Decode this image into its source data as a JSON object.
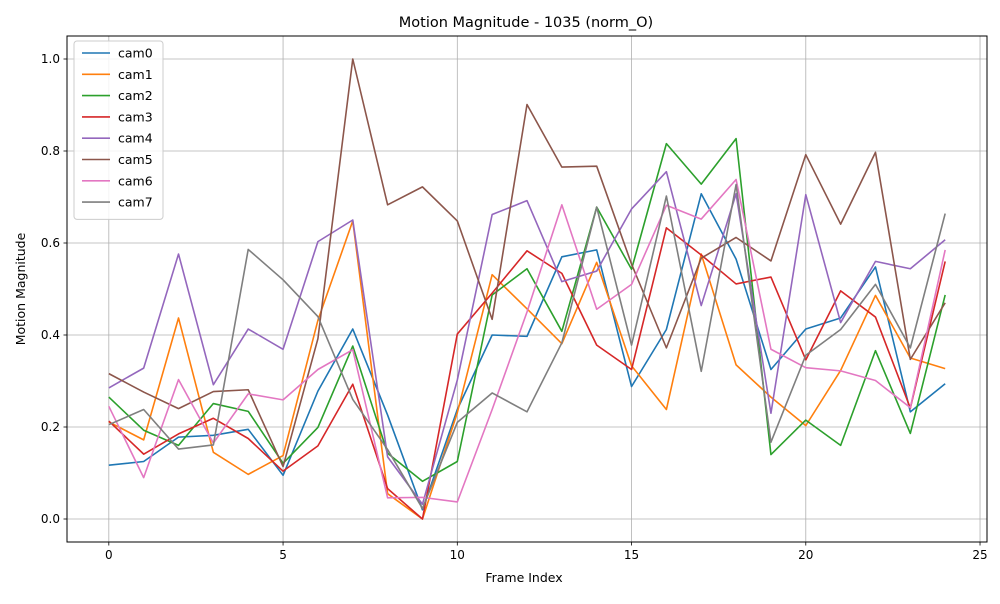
{
  "chart_data": {
    "type": "line",
    "title": "Motion Magnitude - 1035 (norm_O)",
    "xlabel": "Frame Index",
    "ylabel": "Motion Magnitude",
    "xlim": [
      -1.2,
      25.2
    ],
    "ylim": [
      -0.05,
      1.05
    ],
    "xticks": [
      0,
      5,
      10,
      15,
      20,
      25
    ],
    "yticks": [
      0.0,
      0.2,
      0.4,
      0.6,
      0.8,
      1.0
    ],
    "xtick_labels": [
      "0",
      "5",
      "10",
      "15",
      "20",
      "25"
    ],
    "ytick_labels": [
      "0.0",
      "0.2",
      "0.4",
      "0.6",
      "0.8",
      "1.0"
    ],
    "grid": true,
    "legend_position": "top-left",
    "x": [
      0,
      1,
      2,
      3,
      4,
      5,
      6,
      7,
      8,
      9,
      10,
      11,
      12,
      13,
      14,
      15,
      16,
      17,
      18,
      19,
      20,
      21,
      22,
      23,
      24
    ],
    "series": [
      {
        "name": "cam0",
        "color": "#1f77b4",
        "values": [
          0.117,
          0.125,
          0.178,
          0.182,
          0.195,
          0.095,
          0.278,
          0.413,
          0.226,
          0.02,
          0.238,
          0.4,
          0.397,
          0.57,
          0.585,
          0.288,
          0.412,
          0.707,
          0.565,
          0.325,
          0.413,
          0.437,
          0.548,
          0.233,
          0.294
        ]
      },
      {
        "name": "cam1",
        "color": "#ff7f0e",
        "values": [
          0.211,
          0.172,
          0.437,
          0.145,
          0.097,
          0.138,
          0.432,
          0.648,
          0.055,
          0.0,
          0.231,
          0.531,
          0.457,
          0.381,
          0.558,
          0.333,
          0.238,
          0.576,
          0.335,
          0.265,
          0.203,
          0.323,
          0.486,
          0.35,
          0.327
        ]
      },
      {
        "name": "cam2",
        "color": "#2ca02c",
        "values": [
          0.265,
          0.193,
          0.16,
          0.251,
          0.234,
          0.121,
          0.199,
          0.376,
          0.143,
          0.082,
          0.125,
          0.487,
          0.544,
          0.408,
          0.678,
          0.543,
          0.816,
          0.728,
          0.827,
          0.14,
          0.215,
          0.16,
          0.366,
          0.186,
          0.487
        ]
      },
      {
        "name": "cam3",
        "color": "#d62728",
        "values": [
          0.213,
          0.141,
          0.185,
          0.219,
          0.175,
          0.104,
          0.159,
          0.293,
          0.066,
          0.0,
          0.402,
          0.491,
          0.583,
          0.534,
          0.378,
          0.325,
          0.633,
          0.574,
          0.511,
          0.526,
          0.346,
          0.496,
          0.439,
          0.241,
          0.56
        ]
      },
      {
        "name": "cam4",
        "color": "#9467bd",
        "values": [
          0.285,
          0.328,
          0.576,
          0.292,
          0.413,
          0.369,
          0.603,
          0.65,
          0.135,
          0.032,
          0.302,
          0.662,
          0.692,
          0.516,
          0.539,
          0.674,
          0.755,
          0.464,
          0.707,
          0.23,
          0.705,
          0.427,
          0.56,
          0.544,
          0.607
        ]
      },
      {
        "name": "cam5",
        "color": "#8c564b",
        "values": [
          0.316,
          0.276,
          0.24,
          0.277,
          0.281,
          0.114,
          0.392,
          1.0,
          0.683,
          0.722,
          0.648,
          0.434,
          0.901,
          0.765,
          0.767,
          0.554,
          0.372,
          0.567,
          0.612,
          0.561,
          0.792,
          0.641,
          0.797,
          0.347,
          0.47
        ]
      },
      {
        "name": "cam6",
        "color": "#e377c2",
        "values": [
          0.245,
          0.09,
          0.303,
          0.165,
          0.272,
          0.259,
          0.325,
          0.368,
          0.046,
          0.047,
          0.037,
          0.238,
          0.45,
          0.683,
          0.456,
          0.51,
          0.682,
          0.652,
          0.738,
          0.369,
          0.329,
          0.322,
          0.301,
          0.242,
          0.585
        ]
      },
      {
        "name": "cam7",
        "color": "#7f7f7f",
        "values": [
          0.205,
          0.238,
          0.152,
          0.161,
          0.586,
          0.52,
          0.44,
          0.26,
          0.151,
          0.023,
          0.21,
          0.274,
          0.233,
          0.383,
          0.678,
          0.378,
          0.702,
          0.321,
          0.727,
          0.167,
          0.356,
          0.412,
          0.51,
          0.372,
          0.664
        ]
      }
    ]
  }
}
